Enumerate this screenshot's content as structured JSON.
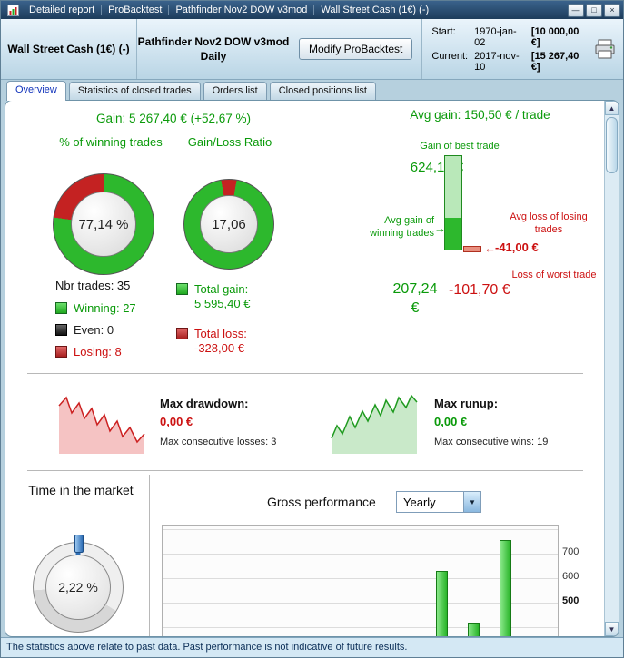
{
  "colors": {
    "green": "#0a9a0a",
    "red": "#cc1111",
    "bar_green": "#33cc33",
    "accent_blue": "#2f6fb4"
  },
  "icons": {
    "minimize": "—",
    "maximize": "□",
    "close": "×",
    "dropdown_arrow": "▼",
    "scroll_up": "▲",
    "scroll_down": "▼",
    "arrow_right": "→",
    "arrow_left": "←"
  },
  "titlebar": {
    "items": [
      "Detailed report",
      "ProBacktest",
      "Pathfinder Nov2 DOW v3mod",
      "Wall Street Cash (1€) (-)"
    ]
  },
  "header": {
    "instrument": "Wall Street Cash (1€) (-)",
    "system": "Pathfinder Nov2 DOW v3mod",
    "timeframe": "Daily",
    "modify_button": "Modify ProBacktest",
    "start_label": "Start:",
    "start_date": "1970-jan-02",
    "start_value": "[10 000,00 €]",
    "current_label": "Current:",
    "current_date": "2017-nov-10",
    "current_value": "[15 267,40 €]"
  },
  "tabs": [
    {
      "label": "Overview"
    },
    {
      "label": "Statistics of closed trades"
    },
    {
      "label": "Orders list"
    },
    {
      "label": "Closed positions list"
    }
  ],
  "overview": {
    "gain_line": "Gain: 5 267,40 € (+52,67 %)",
    "winning_title": "% of winning trades",
    "ratio_title": "Gain/Loss Ratio",
    "nbr_trades": "Nbr trades: 35",
    "legend_winning": "Winning: 27",
    "legend_even": "Even: 0",
    "legend_losing": "Losing: 8",
    "total_gain_label": "Total gain:",
    "total_gain_value": "5 595,40 €",
    "total_loss_label": "Total loss:",
    "total_loss_value": "-328,00 €",
    "avg_gain_line": "Avg gain: 150,50 € / trade",
    "best_trade_label": "Gain of best trade",
    "best_trade_value": "624,10 €",
    "avg_win_label": "Avg gain of winning trades",
    "avg_loss_label": "Avg loss of losing trades",
    "avg_loss_value": "-41,00 €",
    "worst_trade_label": "Loss of worst trade",
    "avg_win_value": "207,24 €",
    "worst_trade_value": "-101,70 €",
    "figures": {
      "best_trade": 624.1,
      "avg_win": 207.24,
      "avg_loss": -41.0,
      "worst_trade": -101.7
    }
  },
  "drawdown": {
    "label": "Max drawdown:",
    "value": "0,00 €",
    "note": "Max consecutive losses: 3"
  },
  "runup": {
    "label": "Max runup:",
    "value": "0,00 €",
    "note": "Max consecutive wins: 19"
  },
  "time_in_market": {
    "title": "Time in the market"
  },
  "gross_performance": {
    "title": "Gross performance",
    "period": "Yearly"
  },
  "chart_data": [
    {
      "type": "pie",
      "title": "% of winning trades",
      "labels": [
        "Winning",
        "Losing"
      ],
      "values": [
        77.14,
        22.86
      ],
      "colors": [
        "#2db82d",
        "#c42222"
      ],
      "center_text": "77,14 %"
    },
    {
      "type": "pie",
      "title": "Gain/Loss Ratio",
      "labels": [
        "Total gain",
        "Total loss"
      ],
      "values": [
        94.46,
        5.54
      ],
      "colors": [
        "#2db82d",
        "#c42222"
      ],
      "center_text": "17,06"
    },
    {
      "type": "bar",
      "title": "Gross performance (Yearly)",
      "note": "x-axis labels cut off below visible area; values estimated from gridlines",
      "values": [
        630,
        420,
        755
      ],
      "yticks": [
        "700",
        "600",
        "500"
      ],
      "ylim_visible": [
        380,
        780
      ],
      "bar_color": "#33cc33"
    },
    {
      "type": "pie",
      "title": "Time in the market",
      "labels": [
        "In market",
        "Out of market"
      ],
      "values": [
        2.22,
        97.78
      ],
      "colors": [
        "#2f6fb4",
        "#e0e0e0"
      ],
      "center_text": "2,22 %"
    }
  ],
  "statusbar": {
    "text": "The statistics above relate to past data. Past performance is not indicative of future results."
  }
}
